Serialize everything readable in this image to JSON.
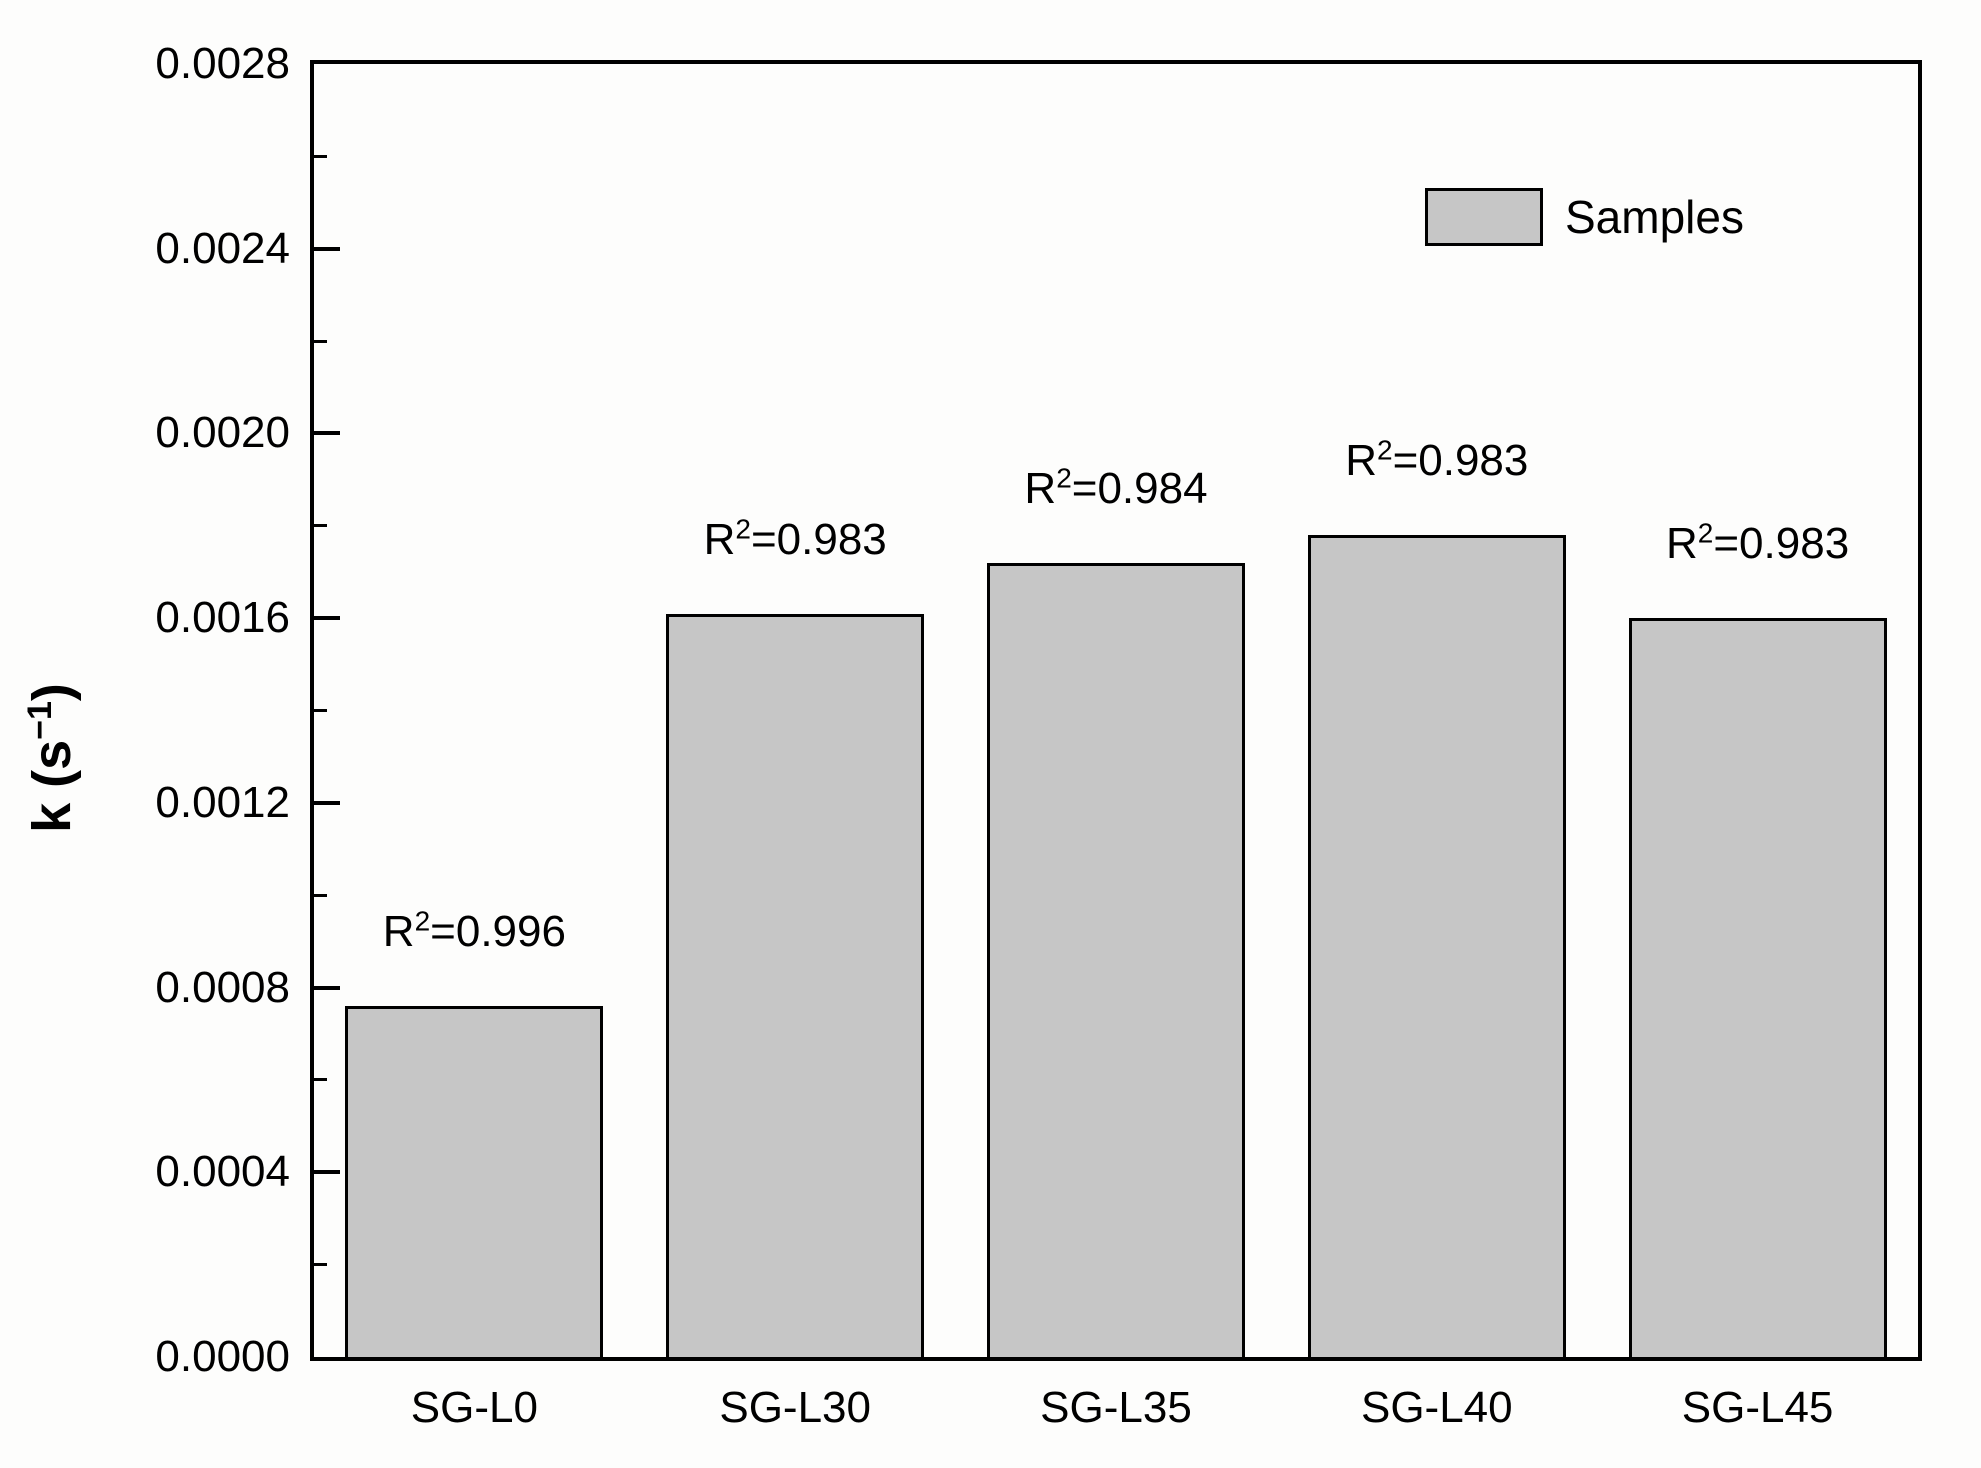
{
  "chart_data": {
    "type": "bar",
    "title": "",
    "xlabel": "",
    "ylabel": "k (s⁻¹)",
    "ylim": [
      0,
      0.0028
    ],
    "ytick_interval": 0.0004,
    "minor_ytick_interval": 0.0002,
    "ytick_labels": [
      "0.0000",
      "0.0004",
      "0.0008",
      "0.0012",
      "0.0016",
      "0.0020",
      "0.0024",
      "0.0028"
    ],
    "categories": [
      "SG-L0",
      "SG-L30",
      "SG-L35",
      "SG-L40",
      "SG-L45"
    ],
    "values": [
      0.00076,
      0.00161,
      0.00172,
      0.00178,
      0.0016
    ],
    "annotations": [
      "R²=0.996",
      "R²=0.983",
      "R²=0.984",
      "R²=0.983",
      "R²=0.983"
    ],
    "legend": {
      "label": "Samples",
      "position": "top-right"
    },
    "colors": {
      "bar_fill": "#c6c6c6",
      "bar_border": "#000000",
      "axis": "#000000",
      "background": "#fdfdfc"
    },
    "grid": false
  }
}
